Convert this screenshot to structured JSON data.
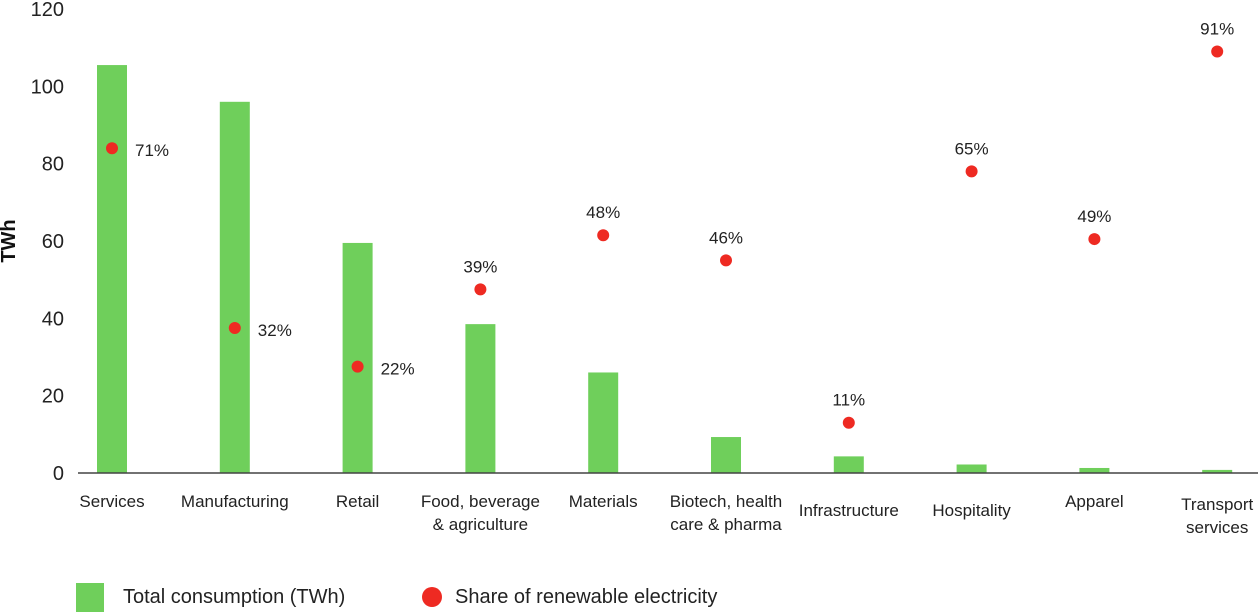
{
  "chart_data": {
    "type": "bar",
    "ylabel": "TWh",
    "ylim": [
      0,
      120
    ],
    "yticks": [
      0,
      20,
      40,
      60,
      80,
      100,
      120
    ],
    "grid": false,
    "legend_placement": "bottom-left",
    "colors": {
      "bar": "#6fcf5b",
      "dot": "#ee2a22",
      "axis": "#444444"
    },
    "categories": [
      [
        "Services"
      ],
      [
        "Manufacturing"
      ],
      [
        "Retail"
      ],
      [
        "Food, beverage",
        "& agriculture"
      ],
      [
        "Materials"
      ],
      [
        "Biotech, health",
        "care & pharma"
      ],
      [
        "Infrastructure"
      ],
      [
        "Hospitality"
      ],
      [
        "Apparel"
      ],
      [
        "Transport",
        "services"
      ]
    ],
    "series": [
      {
        "name": "Total consumption (TWh)",
        "kind": "bar",
        "values": [
          105.5,
          96,
          59.5,
          38.5,
          26,
          9.3,
          4.3,
          2.2,
          1.3,
          0.8
        ]
      },
      {
        "name": "Share of renewable electricity",
        "kind": "scatter",
        "values": [
          71,
          32,
          22,
          39,
          48,
          46,
          11,
          65,
          49,
          91
        ],
        "labels": [
          "71%",
          "32%",
          "22%",
          "39%",
          "48%",
          "46%",
          "11%",
          "65%",
          "49%",
          "91%"
        ],
        "plotted_at_twh": [
          84,
          37.5,
          27.5,
          47.5,
          61.5,
          55,
          13,
          78,
          60.5,
          109
        ]
      }
    ]
  }
}
